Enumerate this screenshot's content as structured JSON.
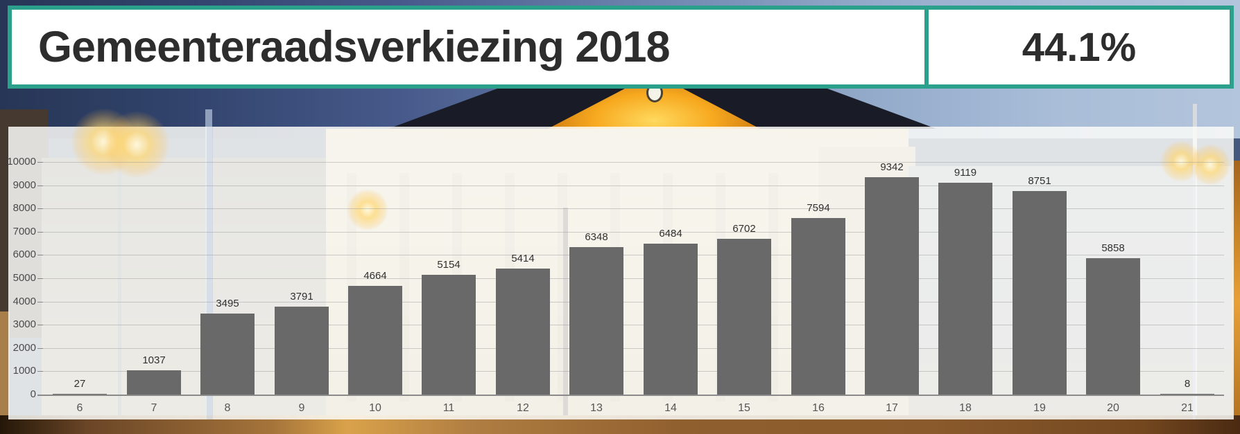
{
  "header": {
    "title": "Gemeenteraadsverkiezing 2018",
    "turnout": "44.1%"
  },
  "colors": {
    "accent": "#2aa08d",
    "bar": "#696969",
    "panel": "rgba(252,251,248,0.85)"
  },
  "chart_data": {
    "type": "bar",
    "title": "",
    "xlabel": "",
    "ylabel": "",
    "categories": [
      "6",
      "7",
      "8",
      "9",
      "10",
      "11",
      "12",
      "13",
      "14",
      "15",
      "16",
      "17",
      "18",
      "19",
      "20",
      "21"
    ],
    "values": [
      27,
      1037,
      3495,
      3791,
      4664,
      5154,
      5414,
      6348,
      6484,
      6702,
      7594,
      9342,
      9119,
      8751,
      5858,
      8
    ],
    "ylim": [
      0,
      10000
    ],
    "ytick_step": 1000,
    "grid": true,
    "legend": "none",
    "data_labels": true
  }
}
